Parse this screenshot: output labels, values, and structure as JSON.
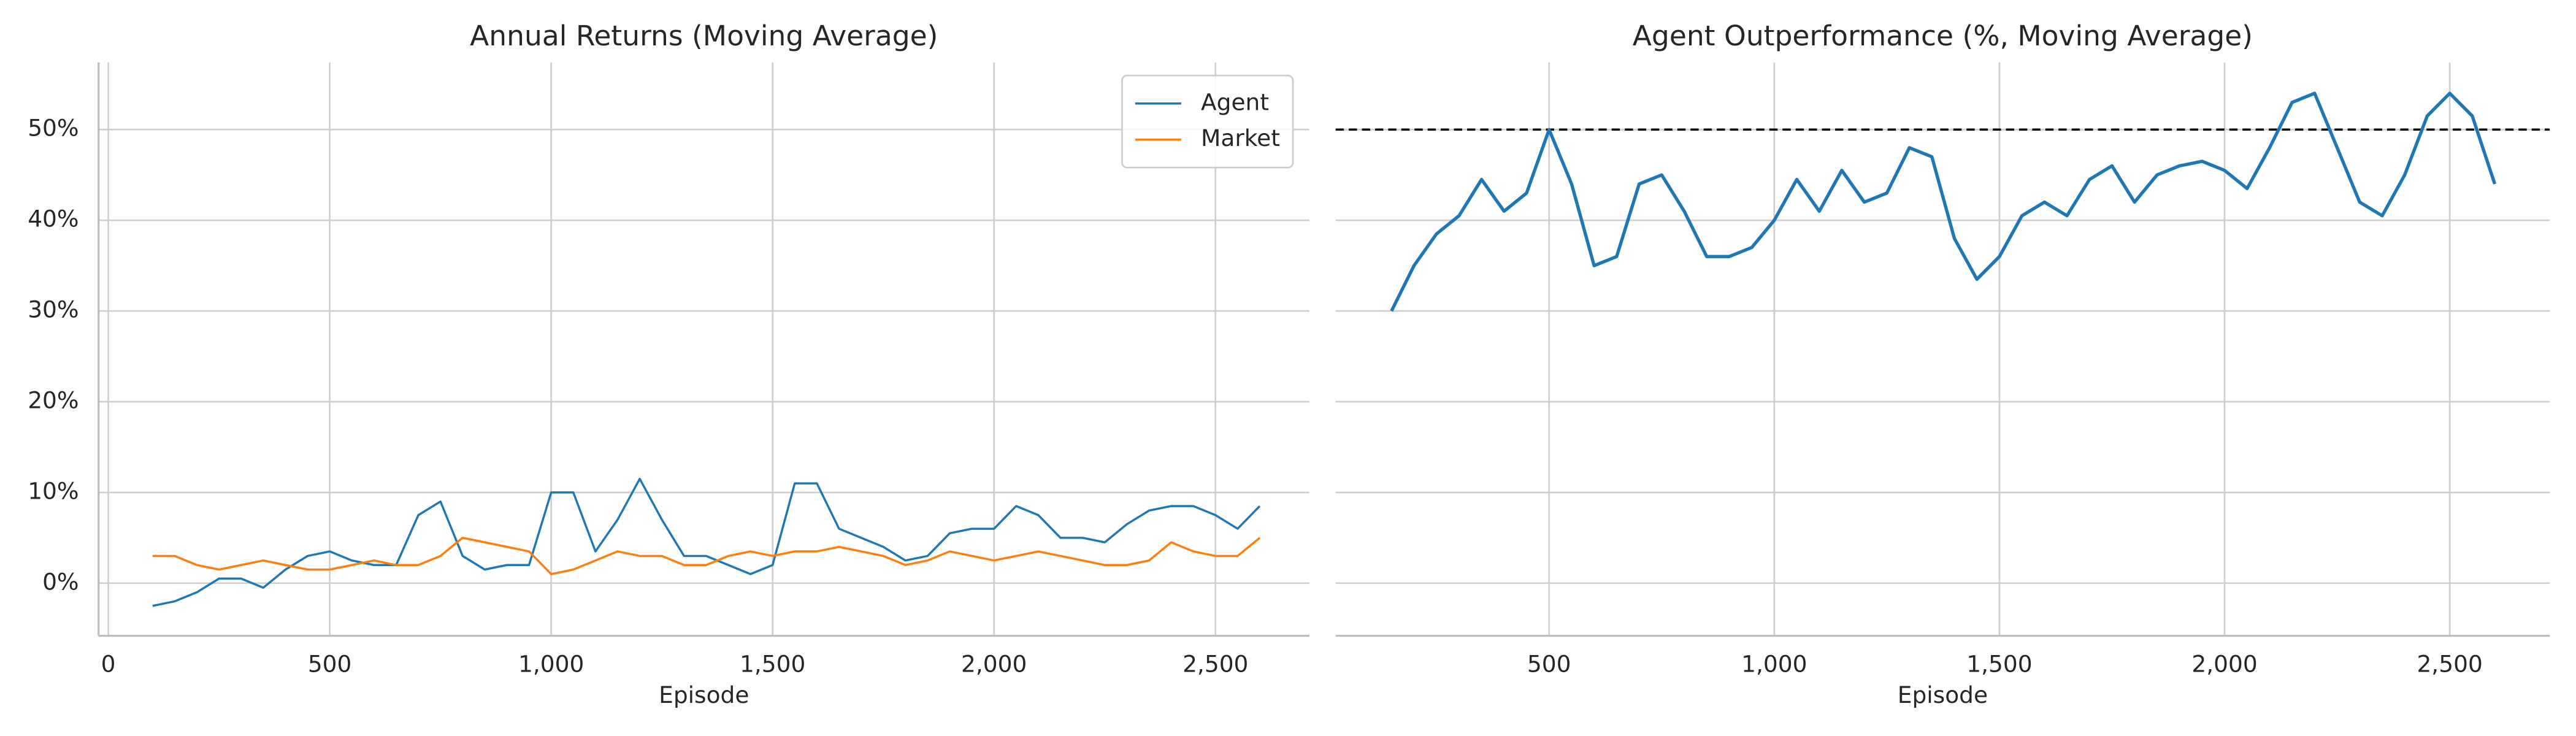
{
  "chart_data": [
    {
      "type": "line",
      "title": "Annual Returns (Moving Average)",
      "xlabel": "Episode",
      "x": [
        100,
        150,
        200,
        250,
        300,
        350,
        400,
        450,
        500,
        550,
        600,
        650,
        700,
        750,
        800,
        850,
        900,
        950,
        1000,
        1050,
        1100,
        1150,
        1200,
        1250,
        1300,
        1350,
        1400,
        1450,
        1500,
        1550,
        1600,
        1650,
        1700,
        1750,
        1800,
        1850,
        1900,
        1950,
        2000,
        2050,
        2100,
        2150,
        2200,
        2250,
        2300,
        2350,
        2400,
        2450,
        2500,
        2550,
        2600
      ],
      "series": [
        {
          "name": "Agent",
          "color": "#1f77b4",
          "values": [
            -2.5,
            -2,
            -1,
            0.5,
            0.5,
            -0.5,
            1.5,
            3,
            3.5,
            2.5,
            2,
            2,
            7.5,
            9,
            3,
            1.5,
            2,
            2,
            10,
            10,
            3.5,
            7,
            11.5,
            7,
            3,
            3,
            2,
            1,
            2,
            11,
            11,
            6,
            5,
            4,
            2.5,
            3,
            5.5,
            6,
            6,
            8.5,
            7.5,
            5,
            5,
            4.5,
            6.5,
            8,
            8.5,
            8.5,
            7.5,
            6,
            8.5
          ]
        },
        {
          "name": "Market",
          "color": "#ff7f0e",
          "values": [
            3,
            3,
            2,
            1.5,
            2,
            2.5,
            2,
            1.5,
            1.5,
            2,
            2.5,
            2,
            2,
            3,
            5,
            4.5,
            4,
            3.5,
            1,
            1.5,
            2.5,
            3.5,
            3,
            3,
            2,
            2,
            3,
            3.5,
            3,
            3.5,
            3.5,
            4,
            3.5,
            3,
            2,
            2.5,
            3.5,
            3,
            2.5,
            3,
            3.5,
            3,
            2.5,
            2,
            2,
            2.5,
            4.5,
            3.5,
            3,
            3,
            5
          ]
        }
      ],
      "xlim": [
        -22,
        2712
      ],
      "ylim": [
        -5.8,
        57.4
      ],
      "xticks": [
        0,
        500,
        {
          "value": 1000,
          "label": "1,000"
        },
        {
          "value": 1500,
          "label": "1,500"
        },
        {
          "value": 2000,
          "label": "2,000"
        },
        {
          "value": 2500,
          "label": "2,500"
        }
      ],
      "yticks": [
        {
          "value": 0,
          "label": "0%"
        },
        {
          "value": 10,
          "label": "10%"
        },
        {
          "value": 20,
          "label": "20%"
        },
        {
          "value": 30,
          "label": "30%"
        },
        {
          "value": 40,
          "label": "40%"
        },
        {
          "value": 50,
          "label": "50%"
        }
      ],
      "show_ytick_labels": true,
      "grid": true,
      "legend": "upper right",
      "line_width": 1.3
    },
    {
      "type": "line",
      "title": "Agent Outperformance (%, Moving Average)",
      "xlabel": "Episode",
      "x": [
        150,
        200,
        250,
        300,
        350,
        400,
        450,
        500,
        550,
        600,
        650,
        700,
        750,
        800,
        850,
        900,
        950,
        1000,
        1050,
        1100,
        1150,
        1200,
        1250,
        1300,
        1350,
        1400,
        1450,
        1500,
        1550,
        1600,
        1650,
        1700,
        1750,
        1800,
        1850,
        1900,
        1950,
        2000,
        2050,
        2100,
        2150,
        2200,
        2250,
        2300,
        2350,
        2400,
        2450,
        2500,
        2550,
        2600
      ],
      "series": [
        {
          "color": "#1f77b4",
          "values": [
            30,
            35,
            38.5,
            40.5,
            44.5,
            41,
            43,
            50,
            44,
            35,
            36,
            44,
            45,
            41,
            36,
            36,
            37,
            40,
            44.5,
            41,
            45.5,
            42,
            43,
            48,
            47,
            38,
            33.5,
            36,
            40.5,
            42,
            40.5,
            44.5,
            46,
            42,
            45,
            46,
            46.5,
            45.5,
            43.5,
            48,
            53,
            54,
            48,
            42,
            40.5,
            45,
            51.5,
            54,
            51.5,
            44
          ]
        }
      ],
      "hline": 50,
      "xlim": [
        26,
        2722
      ],
      "ylim": [
        -5.8,
        57.4
      ],
      "xticks": [
        500,
        {
          "value": 1000,
          "label": "1,000"
        },
        {
          "value": 1500,
          "label": "1,500"
        },
        {
          "value": 2000,
          "label": "2,000"
        },
        {
          "value": 2500,
          "label": "2,500"
        }
      ],
      "yticks": [
        {
          "value": 0,
          "label": "0%"
        },
        {
          "value": 10,
          "label": "10%"
        },
        {
          "value": 20,
          "label": "20%"
        },
        {
          "value": 30,
          "label": "30%"
        },
        {
          "value": 40,
          "label": "40%"
        },
        {
          "value": 50,
          "label": "50%"
        }
      ],
      "show_ytick_labels": false,
      "grid": true,
      "line_width": 2
    }
  ]
}
